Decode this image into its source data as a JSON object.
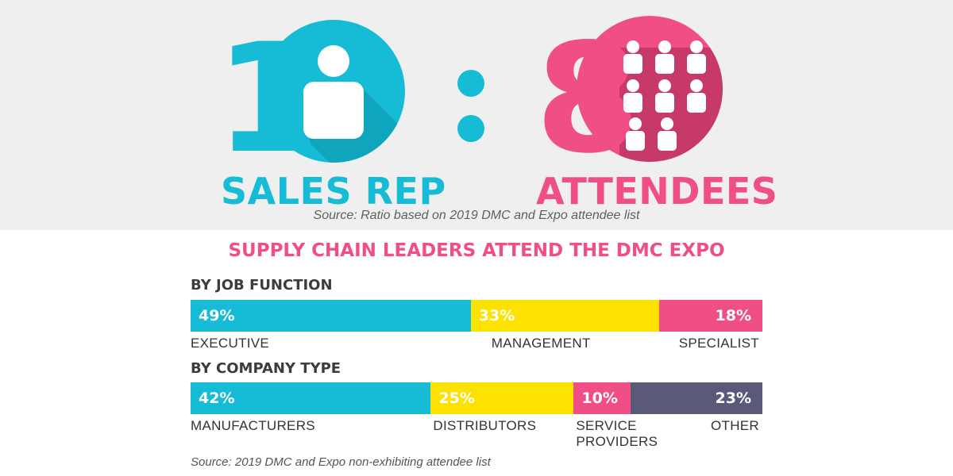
{
  "hero": {
    "left_number": "1",
    "left_label": "SALES REP",
    "separator": ":",
    "right_number": "8",
    "right_label": "ATTENDEES",
    "source": "Source: Ratio based on 2019 DMC and Expo attendee list",
    "colors": {
      "cyan": "#16bcd5",
      "pink": "#ef4f86",
      "pink_dark": "#c03466",
      "cyan_dark": "#0e9db3"
    },
    "icons": [
      "person-icon",
      "people-group-icon"
    ]
  },
  "headline": "SUPPLY CHAIN LEADERS ATTEND THE DMC EXPO",
  "chart_data": [
    {
      "type": "bar",
      "title": "BY JOB FUNCTION",
      "stacked": true,
      "unit": "%",
      "categories": [
        "EXECUTIVE",
        "MANAGEMENT",
        "SPECIALIST"
      ],
      "values": [
        49,
        33,
        18
      ],
      "labels": [
        "49%",
        "33%",
        "18%"
      ],
      "colors": [
        "#16bcd5",
        "#fde100",
        "#ef4f86"
      ]
    },
    {
      "type": "bar",
      "title": "BY COMPANY TYPE",
      "stacked": true,
      "unit": "%",
      "categories": [
        "MANUFACTURERS",
        "DISTRIBUTORS",
        "SERVICE PROVIDERS",
        "OTHER"
      ],
      "values": [
        42,
        25,
        10,
        23
      ],
      "labels": [
        "42%",
        "25%",
        "10%",
        "23%"
      ],
      "colors": [
        "#16bcd5",
        "#fde100",
        "#ef4f86",
        "#5a5978"
      ]
    }
  ],
  "footer_source": "Source: 2019 DMC and Expo non-exhibiting attendee list"
}
